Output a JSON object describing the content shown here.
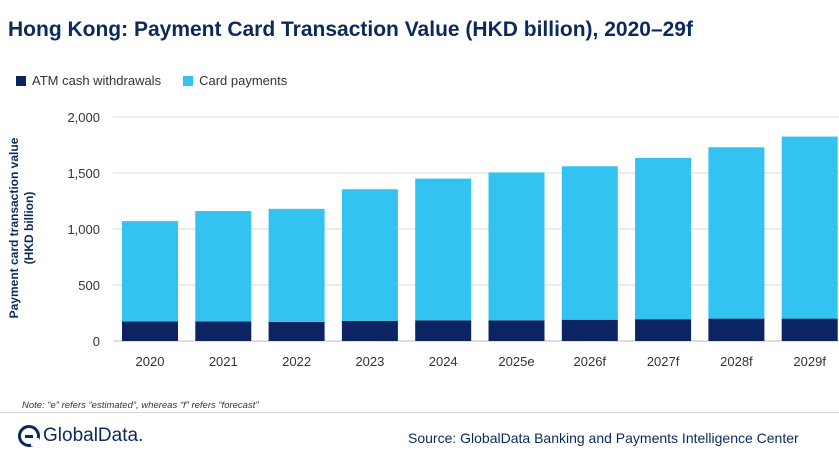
{
  "title": "Hong Kong: Payment Card Transaction Value (HKD billion), 2020–29f",
  "note": "Note: “e” refers “estimated”, whereas “f” refers “forecast”",
  "logo_text": "GlobalData.",
  "source": "Source: GlobalData Banking and Payments Intelligence Center",
  "colors": {
    "atm": "#0c2461",
    "card": "#33c3f0",
    "grid": "#d9d9d9",
    "title": "#0b2a5b"
  },
  "chart_data": {
    "type": "bar",
    "stacked": true,
    "title": "Hong Kong: Payment Card Transaction Value (HKD billion), 2020–29f",
    "xlabel": "",
    "ylabel": "Payment card transaction value (HKD billion)",
    "ylabel_lines": [
      "Payment card transaction value",
      "(HKD billion)"
    ],
    "ylim": [
      0,
      2000
    ],
    "yticks": [
      0,
      500,
      1000,
      1500,
      2000
    ],
    "ytick_labels": [
      "0",
      "500",
      "1,000",
      "1,500",
      "2,000"
    ],
    "grid": true,
    "legend_position": "top-left",
    "categories": [
      "2020",
      "2021",
      "2022",
      "2023",
      "2024",
      "2025e",
      "2026f",
      "2027f",
      "2028f",
      "2029f"
    ],
    "series": [
      {
        "name": "ATM cash withdrawals",
        "values": [
          175,
          175,
          170,
          180,
          185,
          185,
          190,
          195,
          200,
          200
        ]
      },
      {
        "name": "Card payments",
        "values": [
          895,
          985,
          1010,
          1175,
          1265,
          1320,
          1370,
          1440,
          1530,
          1625
        ]
      }
    ]
  }
}
